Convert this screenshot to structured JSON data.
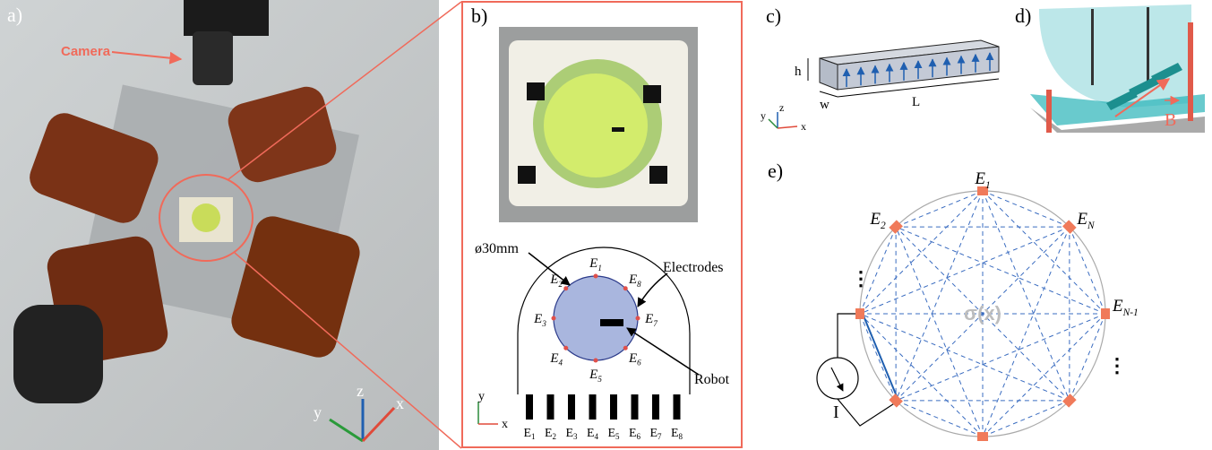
{
  "panels": {
    "a": {
      "label": "a)",
      "camera": "Camera",
      "axes": {
        "x": "x",
        "y": "y",
        "z": "z"
      }
    },
    "b": {
      "label": "b)",
      "diameter": "ø30mm",
      "electrodes_label": "Electrodes",
      "robot": "Robot",
      "circle_electrodes": [
        {
          "letter": "E",
          "sub": "1"
        },
        {
          "letter": "E",
          "sub": "2"
        },
        {
          "letter": "E",
          "sub": "3"
        },
        {
          "letter": "E",
          "sub": "4"
        },
        {
          "letter": "E",
          "sub": "5"
        },
        {
          "letter": "E",
          "sub": "6"
        },
        {
          "letter": "E",
          "sub": "7"
        },
        {
          "letter": "E",
          "sub": "8"
        }
      ],
      "pins": [
        {
          "letter": "E",
          "sub": "1"
        },
        {
          "letter": "E",
          "sub": "2"
        },
        {
          "letter": "E",
          "sub": "3"
        },
        {
          "letter": "E",
          "sub": "4"
        },
        {
          "letter": "E",
          "sub": "5"
        },
        {
          "letter": "E",
          "sub": "6"
        },
        {
          "letter": "E",
          "sub": "7"
        },
        {
          "letter": "E",
          "sub": "8"
        }
      ],
      "axes": {
        "x": "x",
        "y": "y"
      }
    },
    "c": {
      "label": "c)",
      "h": "h",
      "w": "w",
      "L": "L",
      "axes": {
        "x": "x",
        "y": "y",
        "z": "z"
      }
    },
    "d": {
      "label": "d)",
      "field": "B"
    },
    "e": {
      "label": "e)",
      "conductivity": "σ(x)",
      "current": "I",
      "electrodes": [
        {
          "letter": "E",
          "sub": "1"
        },
        {
          "letter": "E",
          "sub": "2"
        },
        {
          "letter": "E",
          "sub": "N"
        },
        {
          "letter": "E",
          "sub": "N-1"
        }
      ],
      "ellipsis": [
        "⋮",
        "⋮"
      ]
    }
  }
}
